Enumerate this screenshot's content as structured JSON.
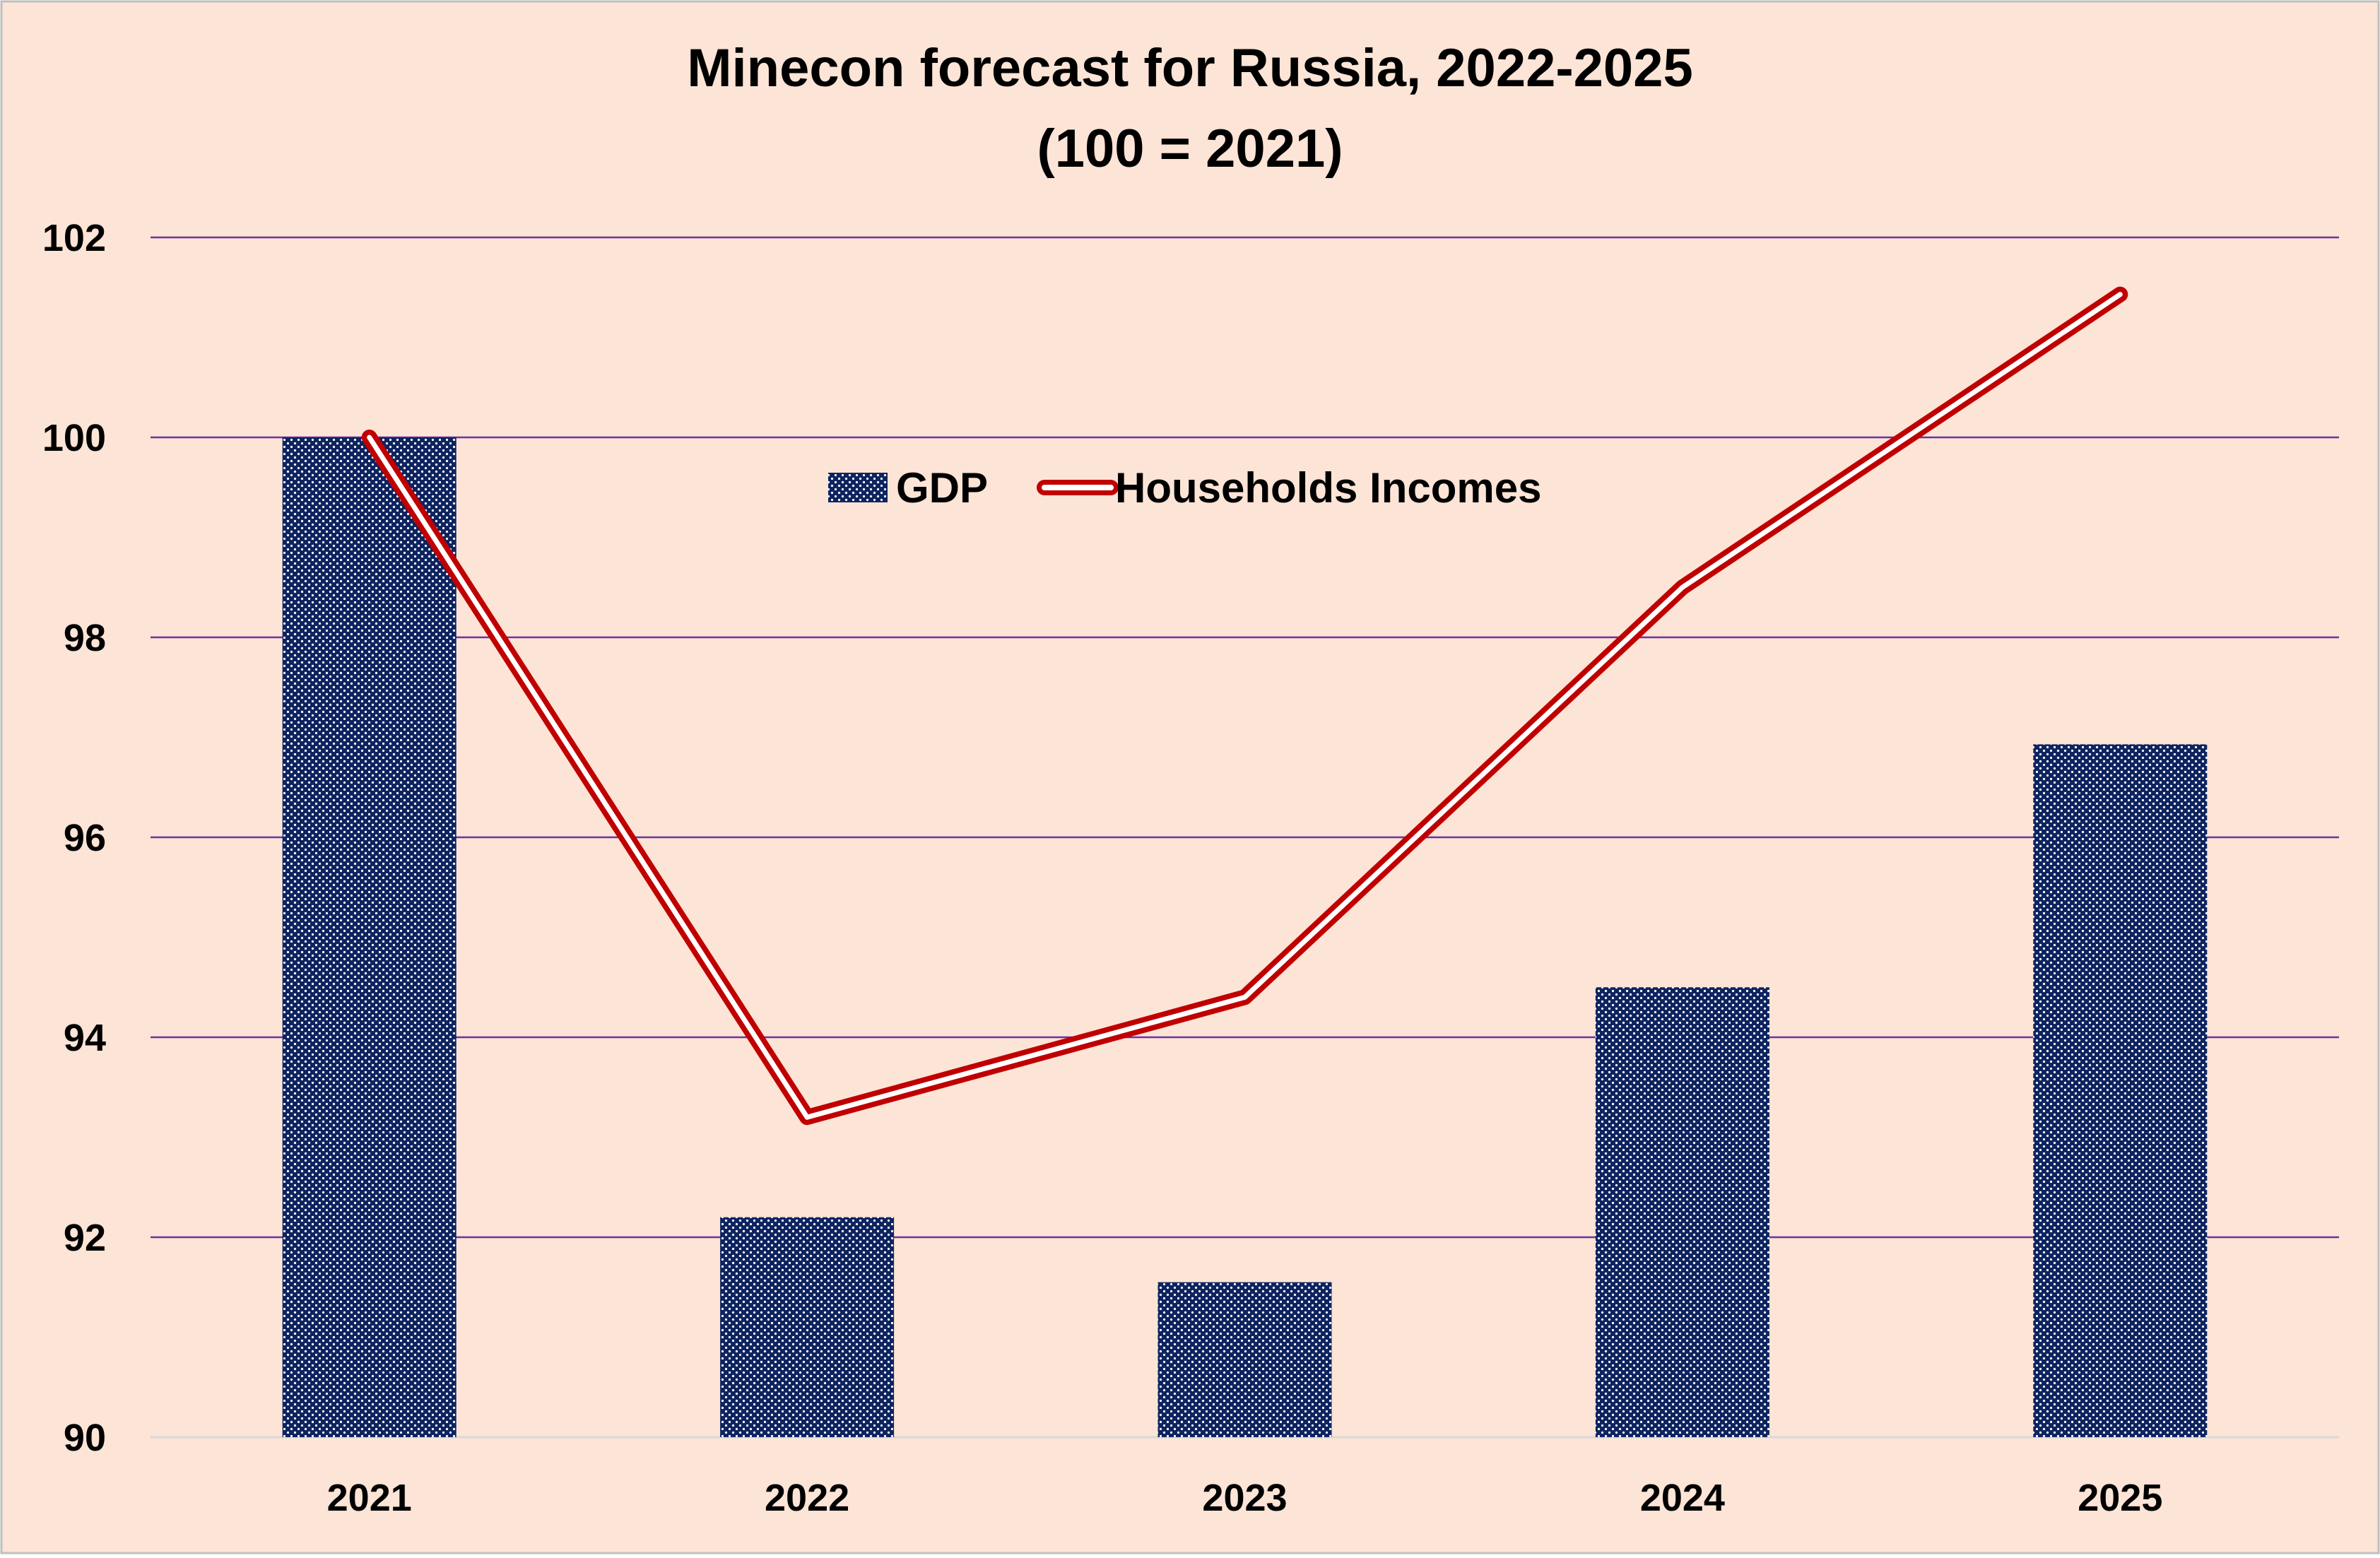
{
  "chart_data": {
    "type": "bar",
    "title": "Minecon forecast for Russia, 2022-2025",
    "subtitle": "(100 = 2021)",
    "xlabel": "",
    "ylabel": "",
    "categories": [
      "2021",
      "2022",
      "2023",
      "2024",
      "2025"
    ],
    "ylim": [
      90,
      102
    ],
    "yticks": [
      90,
      92,
      94,
      96,
      98,
      100,
      102
    ],
    "ytick_labels": [
      "90",
      "92",
      "94",
      "96",
      "98",
      "100",
      "102"
    ],
    "grid": true,
    "legend_position": "top-center",
    "series": [
      {
        "name": "GDP",
        "type": "bar",
        "values": [
          100.0,
          92.2,
          91.55,
          94.5,
          96.93
        ],
        "color": "#0e2460",
        "pattern": "dotted"
      },
      {
        "name": "Households Incomes",
        "type": "line",
        "values": [
          100.0,
          93.2,
          94.4,
          98.5,
          101.43
        ],
        "color": "#c00000",
        "style": "double"
      }
    ]
  },
  "colors": {
    "background": "#fce4d6",
    "gridline": "#7030a0",
    "bar": "#0e2460",
    "line": "#c00000",
    "border": "#bfbfbf"
  }
}
